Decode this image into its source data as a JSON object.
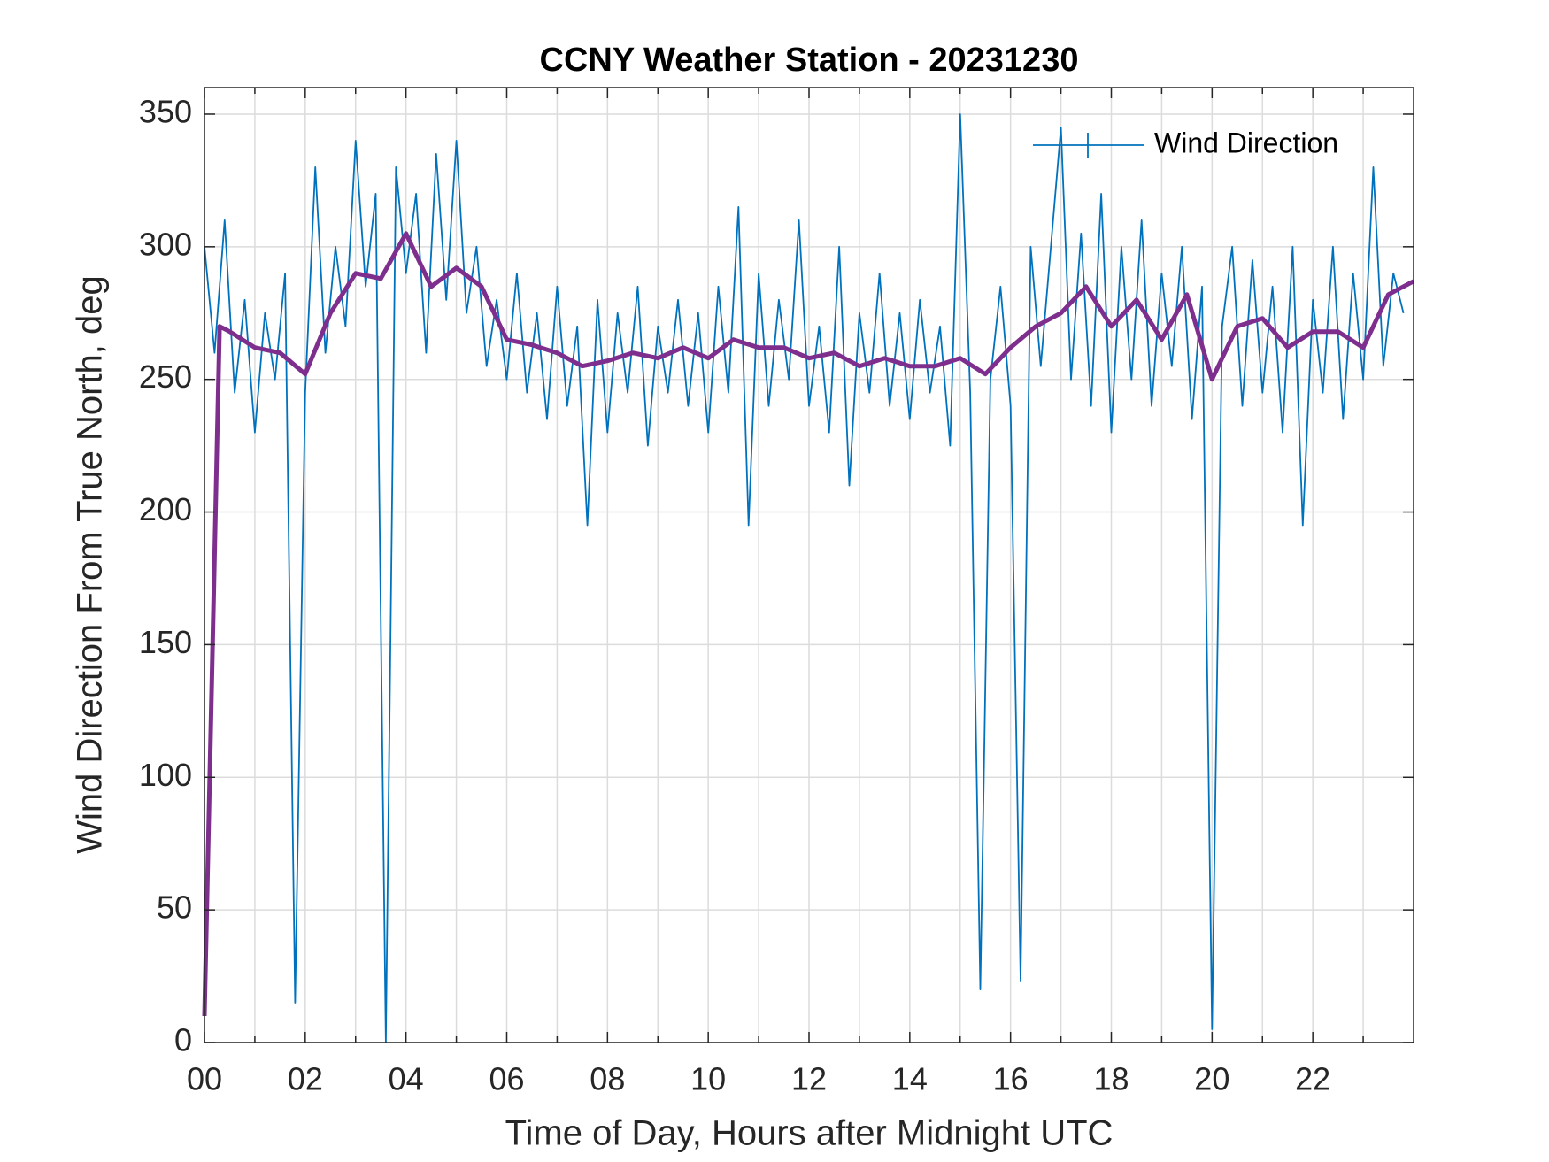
{
  "chart_data": {
    "type": "line",
    "title": "CCNY Weather Station - 20231230",
    "xlabel": "Time of Day, Hours after Midnight UTC",
    "ylabel": "Wind Direction From True North, deg",
    "xlim": [
      0,
      24
    ],
    "ylim": [
      0,
      360
    ],
    "xticks": [
      {
        "value": 0,
        "label": "00"
      },
      {
        "value": 2,
        "label": "02"
      },
      {
        "value": 4,
        "label": "04"
      },
      {
        "value": 6,
        "label": "06"
      },
      {
        "value": 8,
        "label": "08"
      },
      {
        "value": 10,
        "label": "10"
      },
      {
        "value": 12,
        "label": "12"
      },
      {
        "value": 14,
        "label": "14"
      },
      {
        "value": 16,
        "label": "16"
      },
      {
        "value": 18,
        "label": "18"
      },
      {
        "value": 20,
        "label": "20"
      },
      {
        "value": 22,
        "label": "22"
      }
    ],
    "xminorticks": [
      1,
      3,
      5,
      7,
      9,
      11,
      13,
      15,
      17,
      19,
      21,
      23
    ],
    "yticks": [
      0,
      50,
      100,
      150,
      200,
      250,
      300,
      350
    ],
    "grid": true,
    "legend": "upper right",
    "series": [
      {
        "name": "Wind Direction",
        "color": "#0072bd",
        "x": [
          0,
          0.2,
          0.4,
          0.6,
          0.8,
          1,
          1.2,
          1.4,
          1.6,
          1.8,
          2,
          2.2,
          2.4,
          2.6,
          2.8,
          3,
          3.2,
          3.4,
          3.6,
          3.8,
          4,
          4.2,
          4.4,
          4.6,
          4.8,
          5,
          5.2,
          5.4,
          5.6,
          5.8,
          6,
          6.2,
          6.4,
          6.6,
          6.8,
          7,
          7.2,
          7.4,
          7.6,
          7.8,
          8,
          8.2,
          8.4,
          8.6,
          8.8,
          9,
          9.2,
          9.4,
          9.6,
          9.8,
          10,
          10.2,
          10.4,
          10.6,
          10.8,
          11,
          11.2,
          11.4,
          11.6,
          11.8,
          12,
          12.2,
          12.4,
          12.6,
          12.8,
          13,
          13.2,
          13.4,
          13.6,
          13.8,
          14,
          14.2,
          14.4,
          14.6,
          14.8,
          15,
          15.2,
          15.4,
          15.6,
          15.8,
          16,
          16.2,
          16.4,
          16.6,
          16.8,
          17,
          17.2,
          17.4,
          17.6,
          17.8,
          18,
          18.2,
          18.4,
          18.6,
          18.8,
          19,
          19.2,
          19.4,
          19.6,
          19.8,
          20,
          20.2,
          20.4,
          20.6,
          20.8,
          21,
          21.2,
          21.4,
          21.6,
          21.8,
          22,
          22.2,
          22.4,
          22.6,
          22.8,
          23,
          23.2,
          23.4,
          23.6,
          23.8
        ],
        "values": [
          300,
          260,
          310,
          245,
          280,
          230,
          275,
          250,
          290,
          15,
          245,
          330,
          260,
          300,
          270,
          340,
          285,
          320,
          0,
          330,
          290,
          320,
          260,
          335,
          280,
          340,
          275,
          300,
          255,
          280,
          250,
          290,
          245,
          275,
          235,
          285,
          240,
          270,
          195,
          280,
          230,
          275,
          245,
          285,
          225,
          270,
          245,
          280,
          240,
          275,
          230,
          285,
          245,
          315,
          195,
          290,
          240,
          280,
          250,
          310,
          240,
          270,
          230,
          300,
          210,
          275,
          245,
          290,
          240,
          275,
          235,
          280,
          245,
          270,
          225,
          350,
          245,
          20,
          250,
          285,
          240,
          23,
          300,
          255,
          300,
          345,
          250,
          305,
          240,
          320,
          230,
          300,
          250,
          310,
          240,
          290,
          255,
          300,
          235,
          285,
          5,
          270,
          300,
          240,
          295,
          245,
          285,
          230,
          300,
          195,
          280,
          245,
          300,
          235,
          290,
          250,
          330,
          255,
          290,
          275
        ]
      },
      {
        "color": "#7e2f8e",
        "x": [
          0,
          0.3,
          0.5,
          1,
          1.5,
          2,
          2.5,
          3,
          3.5,
          4,
          4.5,
          5,
          5.5,
          6,
          6.5,
          7,
          7.5,
          8,
          8.5,
          9,
          9.5,
          10,
          10.5,
          11,
          11.5,
          12,
          12.5,
          13,
          13.5,
          14,
          14.5,
          15,
          15.5,
          16,
          16.5,
          17,
          17.5,
          18,
          18.5,
          19,
          19.5,
          20,
          20.5,
          21,
          21.5,
          22,
          22.5,
          23,
          23.5,
          24
        ],
        "values": [
          10,
          270,
          268,
          262,
          260,
          252,
          275,
          290,
          288,
          305,
          285,
          292,
          285,
          265,
          263,
          260,
          255,
          257,
          260,
          258,
          262,
          258,
          265,
          262,
          262,
          258,
          260,
          255,
          258,
          255,
          255,
          258,
          252,
          262,
          270,
          275,
          285,
          270,
          280,
          265,
          282,
          250,
          270,
          273,
          262,
          268,
          268,
          262,
          282,
          287
        ]
      }
    ]
  }
}
